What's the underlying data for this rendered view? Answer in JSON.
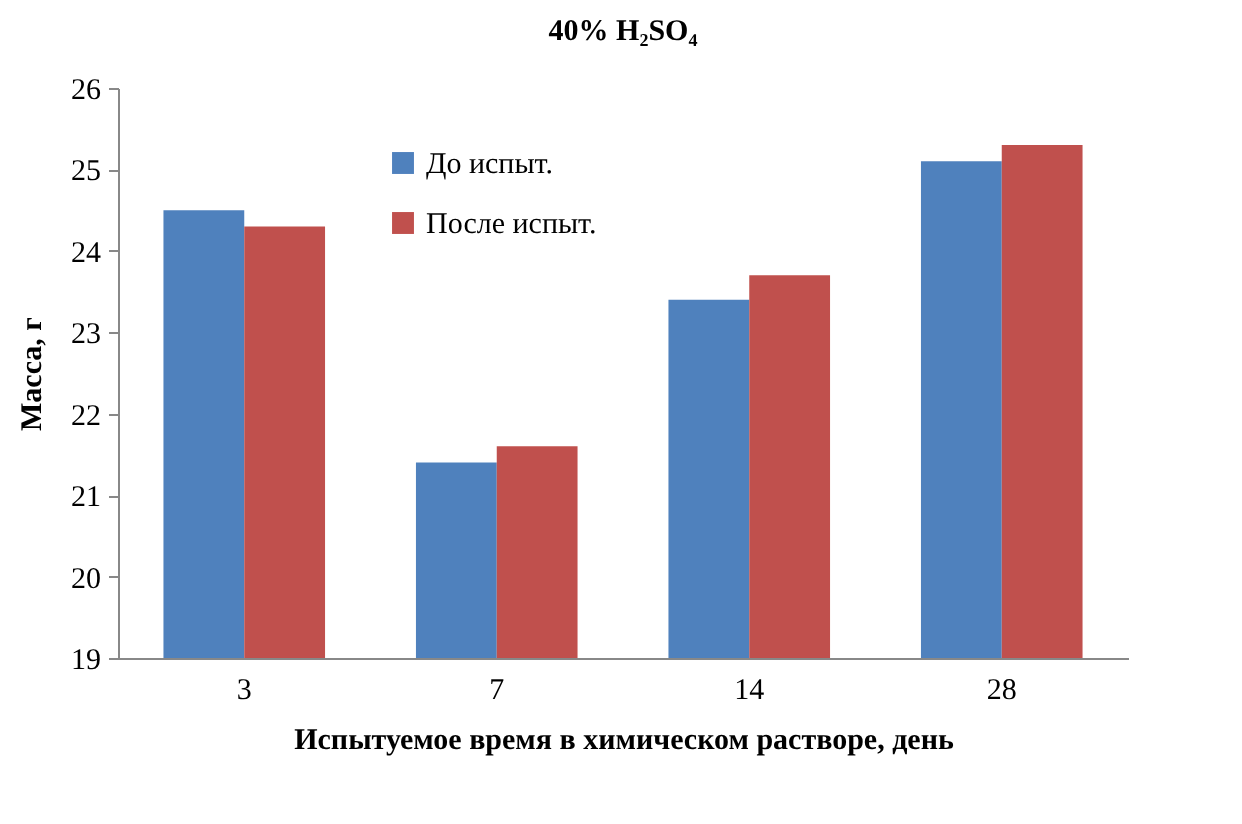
{
  "chart_data": {
    "type": "bar",
    "title": "40% H₂SO₄",
    "xlabel": "Испытуемое время в химическом растворе, день",
    "ylabel": "Масса, г",
    "categories": [
      "3",
      "7",
      "14",
      "28"
    ],
    "series": [
      {
        "name": "До испыт.",
        "color": "#4f81bd",
        "values": [
          24.5,
          21.4,
          23.4,
          25.1
        ]
      },
      {
        "name": "После испыт.",
        "color": "#c0504d",
        "values": [
          24.3,
          21.6,
          23.7,
          25.3
        ]
      }
    ],
    "ylim": [
      19,
      26
    ],
    "yticks": [
      19,
      20,
      21,
      22,
      23,
      24,
      25,
      26
    ],
    "grid": false,
    "legend": "top left"
  }
}
